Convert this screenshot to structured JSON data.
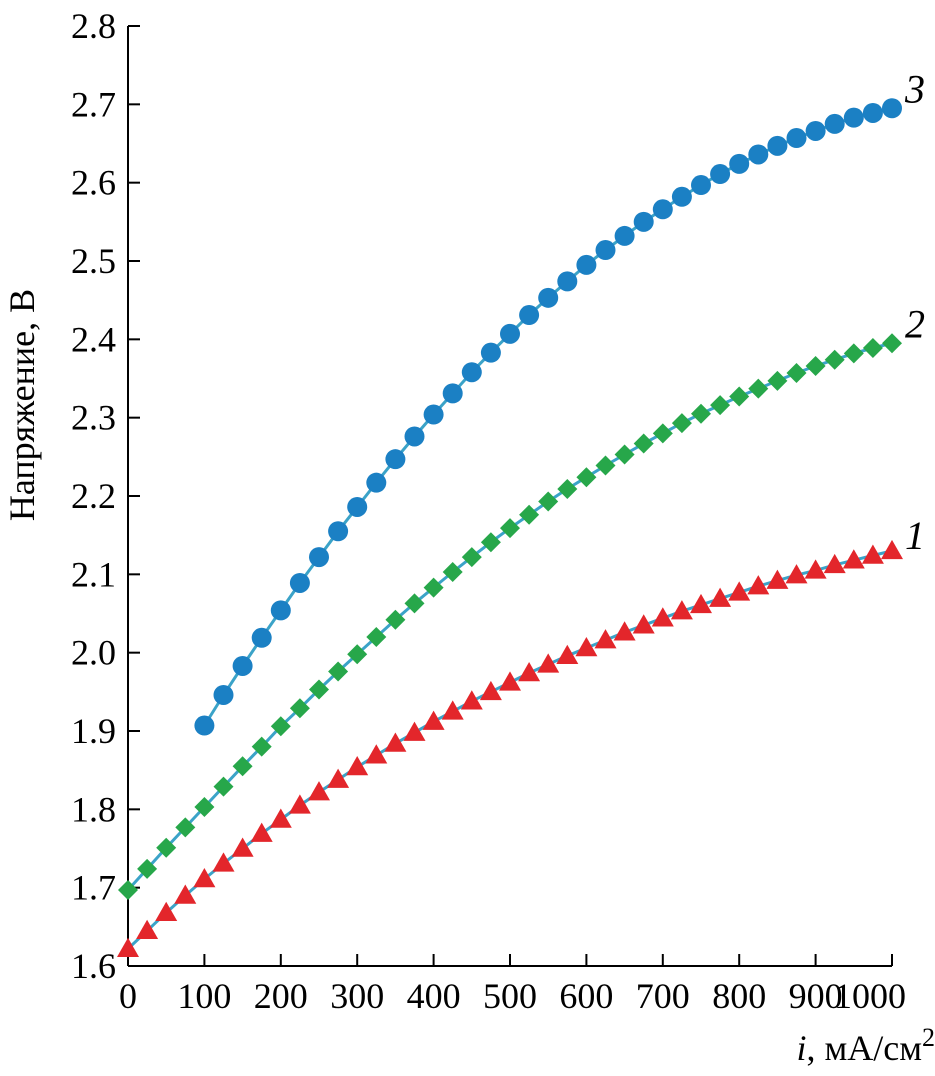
{
  "chart_data": {
    "type": "line",
    "title": "",
    "xlabel": {
      "var": "i",
      "rest": ", мА/см",
      "sup": "2"
    },
    "ylabel": "Напряжение, В",
    "xlim": [
      0,
      1000
    ],
    "ylim": [
      1.6,
      2.8
    ],
    "x_ticks": [
      0,
      100,
      200,
      300,
      400,
      500,
      600,
      700,
      800,
      900,
      1000
    ],
    "y_ticks": [
      "1.6",
      "1.7",
      "1.8",
      "1.9",
      "2.0",
      "2.1",
      "2.2",
      "2.3",
      "2.4",
      "2.5",
      "2.6",
      "2.7",
      "2.8"
    ],
    "grid": false,
    "series": [
      {
        "label": "1",
        "marker": "triangle",
        "color": "#e3262b",
        "line_color": "#3ba3c8",
        "x": [
          0,
          25,
          50,
          75,
          100,
          125,
          150,
          175,
          200,
          225,
          250,
          275,
          300,
          325,
          350,
          375,
          400,
          425,
          450,
          475,
          500,
          525,
          550,
          575,
          600,
          625,
          650,
          675,
          700,
          725,
          750,
          775,
          800,
          825,
          850,
          875,
          900,
          925,
          950,
          975,
          1000
        ],
        "y": [
          1.622,
          1.645,
          1.668,
          1.69,
          1.711,
          1.731,
          1.75,
          1.769,
          1.787,
          1.805,
          1.822,
          1.838,
          1.854,
          1.869,
          1.884,
          1.898,
          1.912,
          1.925,
          1.938,
          1.95,
          1.962,
          1.974,
          1.985,
          1.996,
          2.006,
          2.016,
          2.026,
          2.035,
          2.044,
          2.053,
          2.061,
          2.069,
          2.077,
          2.085,
          2.092,
          2.099,
          2.105,
          2.112,
          2.118,
          2.124,
          2.13
        ]
      },
      {
        "label": "2",
        "marker": "diamond",
        "color": "#27a74a",
        "line_color": "#3ba3c8",
        "x": [
          0,
          25,
          50,
          75,
          100,
          125,
          150,
          175,
          200,
          225,
          250,
          275,
          300,
          325,
          350,
          375,
          400,
          425,
          450,
          475,
          500,
          525,
          550,
          575,
          600,
          625,
          650,
          675,
          700,
          725,
          750,
          775,
          800,
          825,
          850,
          875,
          900,
          925,
          950,
          975,
          1000
        ],
        "y": [
          1.697,
          1.724,
          1.751,
          1.777,
          1.803,
          1.829,
          1.855,
          1.88,
          1.906,
          1.929,
          1.953,
          1.976,
          1.998,
          2.02,
          2.042,
          2.063,
          2.083,
          2.103,
          2.122,
          2.141,
          2.159,
          2.176,
          2.193,
          2.209,
          2.224,
          2.239,
          2.253,
          2.267,
          2.28,
          2.293,
          2.305,
          2.316,
          2.327,
          2.337,
          2.347,
          2.357,
          2.366,
          2.374,
          2.382,
          2.389,
          2.395
        ]
      },
      {
        "label": "3",
        "marker": "circle",
        "color": "#1b80c4",
        "line_color": "#3ba3c8",
        "x": [
          100,
          125,
          150,
          175,
          200,
          225,
          250,
          275,
          300,
          325,
          350,
          375,
          400,
          425,
          450,
          475,
          500,
          525,
          550,
          575,
          600,
          625,
          650,
          675,
          700,
          725,
          750,
          775,
          800,
          825,
          850,
          875,
          900,
          925,
          950,
          975,
          1000
        ],
        "y": [
          1.907,
          1.946,
          1.983,
          2.019,
          2.054,
          2.089,
          2.122,
          2.155,
          2.186,
          2.217,
          2.247,
          2.276,
          2.304,
          2.331,
          2.358,
          2.383,
          2.407,
          2.431,
          2.453,
          2.474,
          2.495,
          2.514,
          2.532,
          2.55,
          2.566,
          2.582,
          2.597,
          2.611,
          2.624,
          2.636,
          2.647,
          2.657,
          2.666,
          2.675,
          2.683,
          2.689,
          2.695
        ]
      }
    ]
  }
}
